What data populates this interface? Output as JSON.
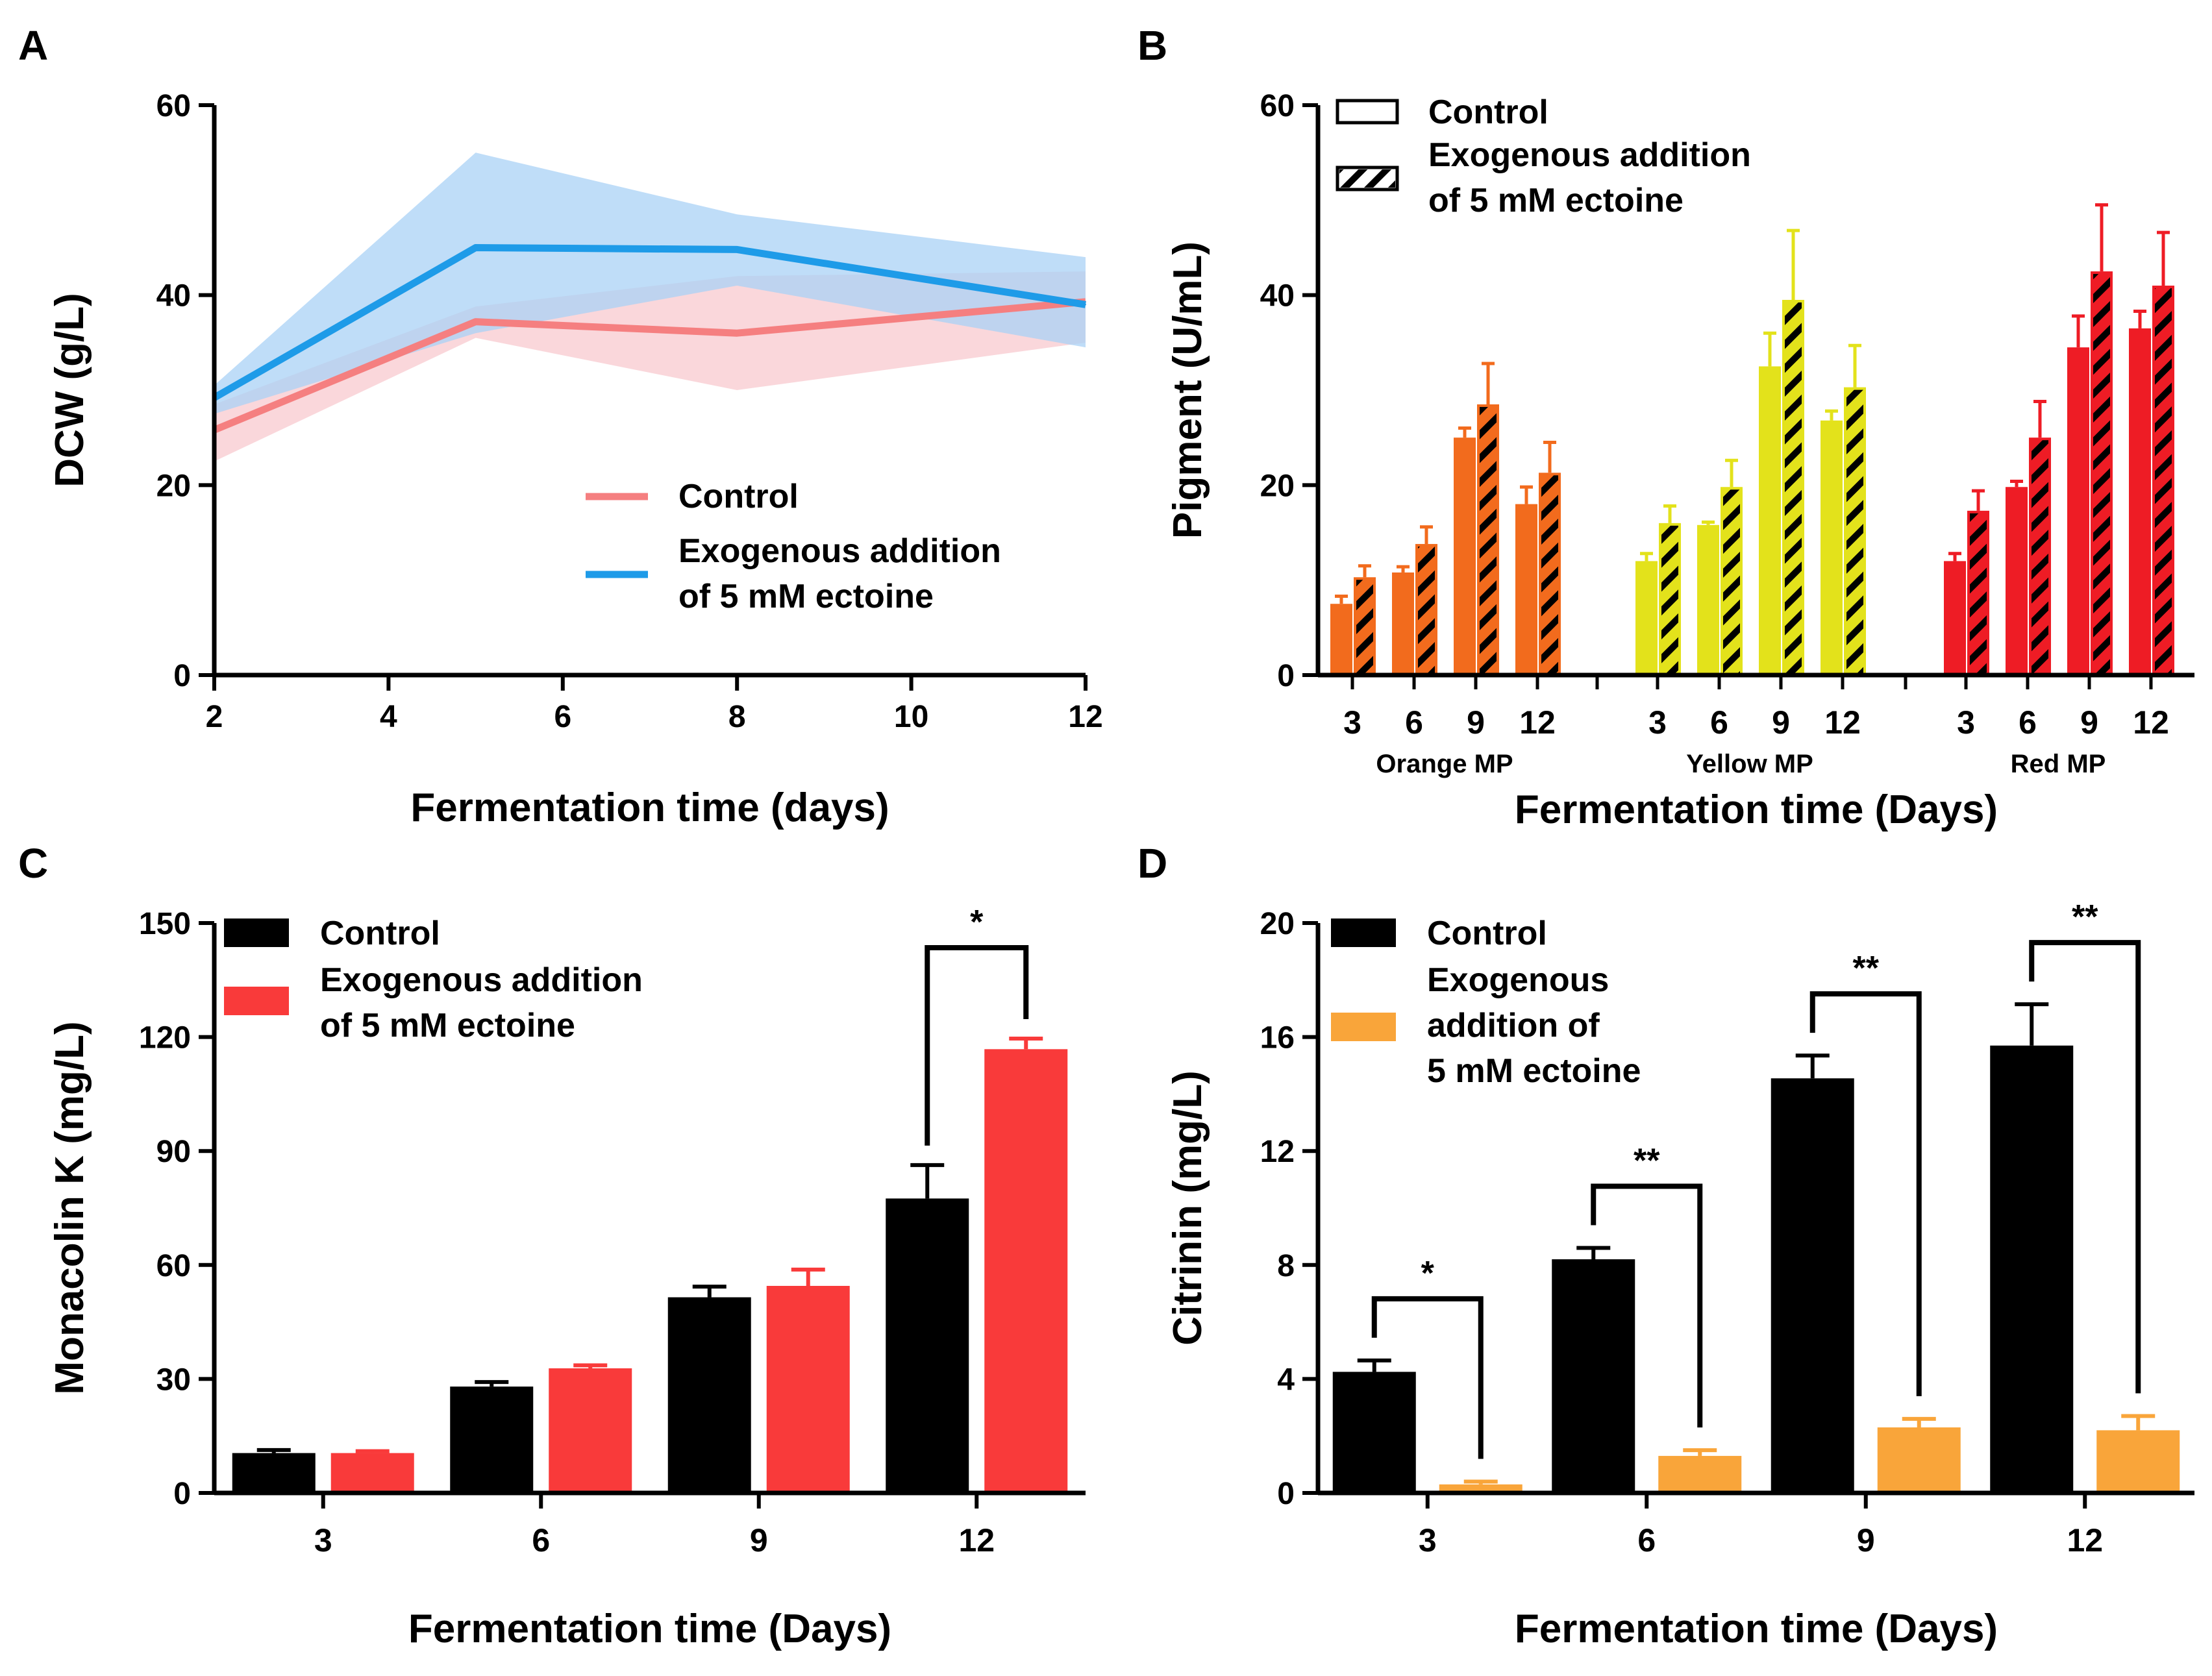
{
  "chart_data": [
    {
      "panel": "A",
      "type": "line",
      "xlabel": "Fermentation time (days)",
      "ylabel": "DCW (g/L)",
      "xlim": [
        2,
        12
      ],
      "ylim": [
        0,
        60
      ],
      "xticks": [
        2,
        4,
        6,
        8,
        10,
        12
      ],
      "yticks": [
        0,
        20,
        40,
        60
      ],
      "x": [
        2,
        5,
        8,
        12
      ],
      "legend_position": "lower-right",
      "series": [
        {
          "name": "Control",
          "color": "#f57f80",
          "band_color": "#f8c9cf",
          "values": [
            25.8,
            37.2,
            36.0,
            39.3
          ],
          "lower": [
            22.5,
            35.5,
            30.0,
            35.0
          ],
          "upper": [
            28.5,
            38.8,
            42.0,
            42.5
          ]
        },
        {
          "name": "Exogenous addition of 5 mM ectoine",
          "color": "#1e9be8",
          "band_color": "#a9d1f5",
          "values": [
            29.2,
            45.0,
            44.8,
            39.0
          ],
          "lower": [
            27.5,
            36.0,
            41.0,
            34.5
          ],
          "upper": [
            30.5,
            55.0,
            48.5,
            44.0
          ]
        }
      ]
    },
    {
      "panel": "B",
      "type": "bar",
      "xlabel": "Fermentation time (Days)",
      "ylabel": "Pigment (U/mL)",
      "ylim": [
        0,
        60
      ],
      "yticks": [
        0,
        20,
        40,
        60
      ],
      "tick_labels": [
        "3",
        "6",
        "9",
        "12"
      ],
      "groups": [
        {
          "name": "Orange MP",
          "color": "#f26b1d",
          "control": [
            7.5,
            10.8,
            25.0,
            18.0
          ],
          "control_err": [
            0.8,
            0.6,
            1.0,
            1.8
          ],
          "ectoine": [
            10.3,
            13.8,
            28.5,
            21.3
          ],
          "ectoine_err": [
            1.2,
            1.8,
            4.3,
            3.2
          ]
        },
        {
          "name": "Yellow MP",
          "color": "#e3e21b",
          "control": [
            12.0,
            15.8,
            32.5,
            26.8
          ],
          "control_err": [
            0.8,
            0.3,
            3.5,
            1.0
          ],
          "ectoine": [
            16.0,
            19.8,
            39.5,
            30.3
          ],
          "ectoine_err": [
            1.8,
            2.8,
            7.3,
            4.4
          ]
        },
        {
          "name": "Red MP",
          "color": "#ee1c25",
          "control": [
            12.0,
            19.8,
            34.5,
            36.5
          ],
          "control_err": [
            0.8,
            0.6,
            3.3,
            1.8
          ],
          "ectoine": [
            17.3,
            25.0,
            42.5,
            41.0
          ],
          "ectoine_err": [
            2.1,
            3.8,
            7.0,
            5.6
          ]
        }
      ],
      "legend": [
        {
          "label": "Control",
          "label_lines": [
            "Control"
          ],
          "style": "open"
        },
        {
          "label": "Exogenous addition of 5 mM ectoine",
          "label_lines": [
            "Exogenous addition",
            "of 5 mM ectoine"
          ],
          "style": "hatched"
        }
      ]
    },
    {
      "panel": "C",
      "type": "bar",
      "xlabel": "Fermentation time (Days)",
      "ylabel": "Monacolin K (mg/L)",
      "ylim": [
        0,
        150
      ],
      "yticks": [
        0,
        30,
        60,
        90,
        120,
        150
      ],
      "categories": [
        "3",
        "6",
        "9",
        "12"
      ],
      "series": [
        {
          "name": "Control",
          "color": "#000000",
          "values": [
            10.5,
            28.0,
            51.5,
            77.5
          ],
          "errors": [
            0.8,
            1.2,
            2.8,
            8.8
          ]
        },
        {
          "name": "Exogenous addition of 5 mM ectoine",
          "color": "#f93a3a",
          "values": [
            10.5,
            32.8,
            54.5,
            116.8
          ],
          "errors": [
            0.5,
            0.8,
            4.3,
            2.8
          ]
        }
      ],
      "legend_lines": [
        [
          "Control"
        ],
        [
          "Exogenous addition",
          "of 5 mM ectoine"
        ]
      ],
      "significance": [
        {
          "category_index": 3,
          "label": "*"
        }
      ]
    },
    {
      "panel": "D",
      "type": "bar",
      "xlabel": "Fermentation time (Days)",
      "ylabel": "Citrinin (mg/L)",
      "ylim": [
        0,
        20
      ],
      "yticks": [
        0,
        4,
        8,
        12,
        16,
        20
      ],
      "categories": [
        "3",
        "6",
        "9",
        "12"
      ],
      "series": [
        {
          "name": "Control",
          "color": "#000000",
          "values": [
            4.25,
            8.2,
            14.55,
            15.7
          ],
          "errors": [
            0.4,
            0.4,
            0.8,
            1.45
          ]
        },
        {
          "name": "Exogenous addition of 5 mM ectoine",
          "color": "#f9a53a",
          "values": [
            0.3,
            1.3,
            2.3,
            2.2
          ],
          "errors": [
            0.1,
            0.2,
            0.3,
            0.5
          ]
        }
      ],
      "legend_lines": [
        [
          "Control"
        ],
        [
          "Exogenous",
          "addition of",
          "5 mM ectoine"
        ]
      ],
      "significance": [
        {
          "category_index": 0,
          "label": "*"
        },
        {
          "category_index": 1,
          "label": "**"
        },
        {
          "category_index": 2,
          "label": "**"
        },
        {
          "category_index": 3,
          "label": "**"
        }
      ]
    }
  ]
}
